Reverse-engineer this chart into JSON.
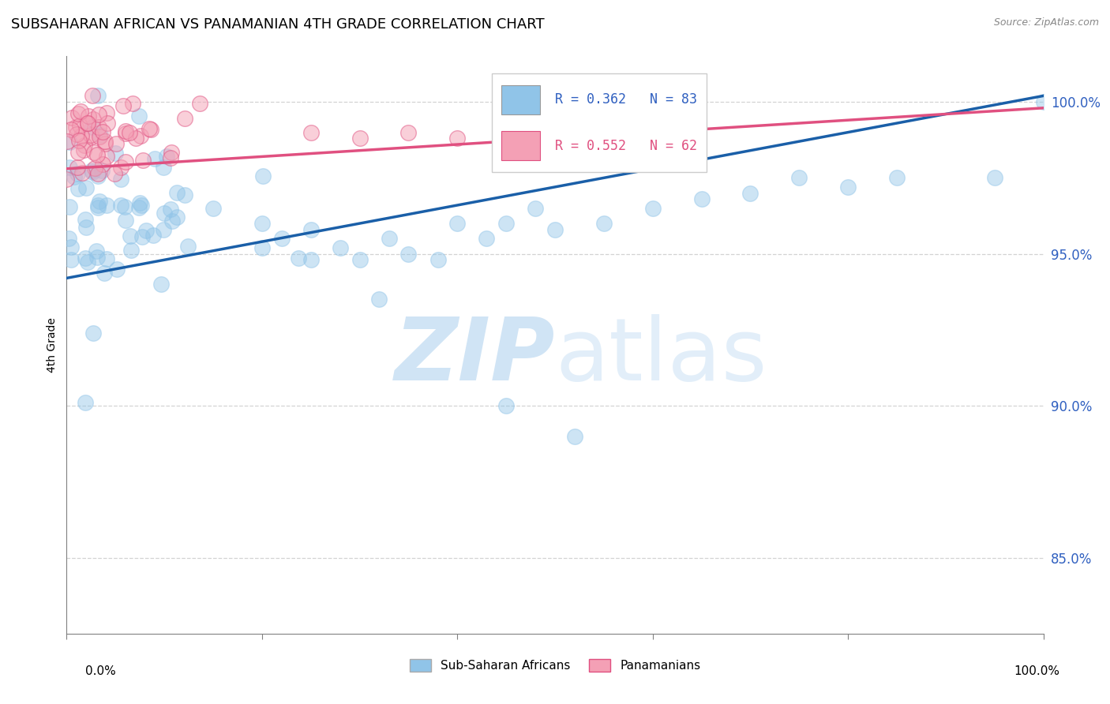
{
  "title": "SUBSAHARAN AFRICAN VS PANAMANIAN 4TH GRADE CORRELATION CHART",
  "source": "Source: ZipAtlas.com",
  "ylabel": "4th Grade",
  "ytick_labels": [
    "100.0%",
    "95.0%",
    "90.0%",
    "85.0%"
  ],
  "ytick_values": [
    1.0,
    0.95,
    0.9,
    0.85
  ],
  "xlim": [
    0.0,
    1.0
  ],
  "ylim": [
    0.825,
    1.015
  ],
  "legend_blue_r": "R = 0.362",
  "legend_blue_n": "N = 83",
  "legend_pink_r": "R = 0.552",
  "legend_pink_n": "N = 62",
  "legend_label_blue": "Sub-Saharan Africans",
  "legend_label_pink": "Panamanians",
  "blue_color": "#90c4e8",
  "blue_line_color": "#1a5fa8",
  "pink_color": "#f4a0b5",
  "pink_line_color": "#e05080",
  "watermark_color": "#d0e4f5",
  "blue_line_start_y": 0.942,
  "blue_line_end_y": 1.002,
  "pink_line_start_y": 0.978,
  "pink_line_end_y": 0.998
}
